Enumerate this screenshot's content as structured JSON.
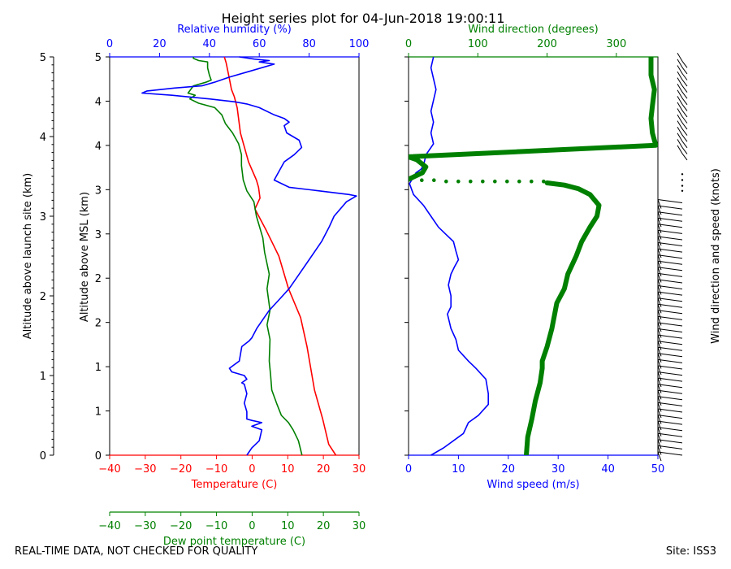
{
  "title": "Height series plot for 04-Jun-2018 19:00:11",
  "footer_left": "REAL-TIME DATA, NOT CHECKED FOR QUALITY",
  "footer_right": "Site: ISS3",
  "colors": {
    "temperature": "#ff0000",
    "dewpoint": "#008000",
    "rh": "#0000ff",
    "wind_speed": "#0000ff",
    "wind_dir": "#008000",
    "axis": "#000000"
  },
  "chart_data": [
    {
      "type": "line",
      "name": "thermo-panel",
      "ylabel_outer": "Altitude above launch site (km)",
      "ylabel_inner": "Altitude above MSL (km)",
      "outer_y_ticks": [
        "0",
        "1",
        "2",
        "3",
        "4",
        "5"
      ],
      "inner_y_ticks": [
        "0",
        "1",
        "1",
        "2",
        "2",
        "3",
        "3",
        "4",
        "4",
        "5"
      ],
      "ylim_agl": [
        0,
        5
      ],
      "temperature_axis": {
        "label": "Temperature (C)",
        "ticks": [
          "−40",
          "−30",
          "−20",
          "−10",
          "0",
          "10",
          "20",
          "30"
        ],
        "xlim": [
          -40,
          30
        ]
      },
      "dewpoint_axis": {
        "label": "Dew point temperature (C)",
        "ticks": [
          "−40",
          "−30",
          "−20",
          "−10",
          "0",
          "10",
          "20",
          "30"
        ],
        "xlim": [
          -40,
          30
        ]
      },
      "rh_axis": {
        "label": "Relative humidity (%)",
        "ticks": [
          "0",
          "20",
          "40",
          "60",
          "80",
          "100"
        ],
        "xlim": [
          0,
          100
        ]
      },
      "series": [
        {
          "name": "Temperature",
          "axis": "temperature",
          "values": [
            [
              23.5,
              0.0
            ],
            [
              21.5,
              0.15
            ],
            [
              19.8,
              0.5
            ],
            [
              17.5,
              0.9
            ],
            [
              15.4,
              1.5
            ],
            [
              13.6,
              1.9
            ],
            [
              10.2,
              2.3
            ],
            [
              7.5,
              2.75
            ],
            [
              4.0,
              3.1
            ],
            [
              0.8,
              3.4
            ],
            [
              2.2,
              3.55
            ],
            [
              1.8,
              3.7
            ],
            [
              1.2,
              3.8
            ],
            [
              -1.0,
              4.05
            ],
            [
              -3.3,
              4.45
            ],
            [
              -4.2,
              4.8
            ],
            [
              -5.0,
              4.95
            ],
            [
              -5.8,
              5.05
            ],
            [
              -6.6,
              5.25
            ],
            [
              -7.3,
              5.42
            ],
            [
              -7.8,
              5.5
            ]
          ]
        },
        {
          "name": "Dew point",
          "axis": "dewpoint",
          "values": [
            [
              14.0,
              0.0
            ],
            [
              13.0,
              0.2
            ],
            [
              11.5,
              0.35
            ],
            [
              10.2,
              0.45
            ],
            [
              8.2,
              0.55
            ],
            [
              7.0,
              0.7
            ],
            [
              5.5,
              0.9
            ],
            [
              5.2,
              1.1
            ],
            [
              4.8,
              1.3
            ],
            [
              5.0,
              1.6
            ],
            [
              4.2,
              1.8
            ],
            [
              5.0,
              2.0
            ],
            [
              4.2,
              2.3
            ],
            [
              4.8,
              2.5
            ],
            [
              3.5,
              2.8
            ],
            [
              3.0,
              3.0
            ],
            [
              1.2,
              3.3
            ],
            [
              0.5,
              3.5
            ],
            [
              -1.5,
              3.65
            ],
            [
              -2.5,
              3.8
            ],
            [
              -3.0,
              4.0
            ],
            [
              -3.0,
              4.15
            ],
            [
              -3.8,
              4.3
            ],
            [
              -5.5,
              4.45
            ],
            [
              -7.5,
              4.58
            ],
            [
              -8.5,
              4.7
            ],
            [
              -10.5,
              4.8
            ],
            [
              -15.0,
              4.86
            ],
            [
              -17.5,
              4.92
            ],
            [
              -16.0,
              4.97
            ],
            [
              -18.0,
              5.0
            ],
            [
              -16.5,
              5.1
            ],
            [
              -13.0,
              5.15
            ],
            [
              -11.5,
              5.18
            ],
            [
              -12.0,
              5.25
            ],
            [
              -12.5,
              5.35
            ],
            [
              -12.5,
              5.43
            ],
            [
              -15.0,
              5.45
            ],
            [
              -16.5,
              5.48
            ],
            [
              -16.5,
              5.5
            ]
          ]
        },
        {
          "name": "Relative humidity",
          "axis": "rh",
          "values": [
            [
              55,
              0.0
            ],
            [
              57,
              0.1
            ],
            [
              60,
              0.2
            ],
            [
              61,
              0.35
            ],
            [
              57,
              0.4
            ],
            [
              61,
              0.45
            ],
            [
              57,
              0.48
            ],
            [
              55,
              0.5
            ],
            [
              55,
              0.6
            ],
            [
              54,
              0.72
            ],
            [
              55,
              0.85
            ],
            [
              54,
              0.98
            ],
            [
              53,
              1.0
            ],
            [
              55,
              1.05
            ],
            [
              54,
              1.1
            ],
            [
              49,
              1.15
            ],
            [
              48,
              1.2
            ],
            [
              50,
              1.25
            ],
            [
              52,
              1.3
            ],
            [
              53,
              1.5
            ],
            [
              56,
              1.58
            ],
            [
              57,
              1.62
            ],
            [
              59,
              1.75
            ],
            [
              62,
              1.9
            ],
            [
              64,
              2.0
            ],
            [
              68,
              2.15
            ],
            [
              72,
              2.3
            ],
            [
              75,
              2.45
            ],
            [
              80,
              2.7
            ],
            [
              85,
              2.95
            ],
            [
              88,
              3.15
            ],
            [
              90,
              3.3
            ],
            [
              95,
              3.5
            ],
            [
              99,
              3.58
            ],
            [
              96,
              3.6
            ],
            [
              84,
              3.65
            ],
            [
              72,
              3.7
            ],
            [
              66,
              3.8
            ],
            [
              70,
              4.05
            ],
            [
              74,
              4.15
            ],
            [
              77,
              4.25
            ],
            [
              76,
              4.35
            ],
            [
              71,
              4.45
            ],
            [
              70,
              4.55
            ],
            [
              72,
              4.6
            ],
            [
              70,
              4.65
            ],
            [
              66,
              4.7
            ],
            [
              60,
              4.8
            ],
            [
              55,
              4.85
            ],
            [
              50,
              4.88
            ],
            [
              40,
              4.92
            ],
            [
              25,
              4.97
            ],
            [
              13,
              5.0
            ],
            [
              15,
              5.03
            ],
            [
              26,
              5.07
            ],
            [
              37,
              5.1
            ],
            [
              42,
              5.15
            ],
            [
              48,
              5.22
            ],
            [
              56,
              5.3
            ],
            [
              66,
              5.4
            ],
            [
              60,
              5.43
            ],
            [
              64,
              5.45
            ],
            [
              58,
              5.47
            ],
            [
              52,
              5.5
            ]
          ]
        }
      ]
    },
    {
      "type": "line",
      "name": "wind-panel",
      "ylabel_right": "Wind direction and speed (knots)",
      "ylim_agl": [
        0,
        5
      ],
      "speed_axis": {
        "label": "Wind speed (m/s)",
        "ticks": [
          "0",
          "10",
          "20",
          "30",
          "40",
          "50"
        ],
        "xlim": [
          0,
          50
        ]
      },
      "direction_axis": {
        "label": "Wind direction (degrees)",
        "ticks": [
          "0",
          "100",
          "200",
          "300"
        ],
        "xlim": [
          0,
          360
        ]
      },
      "series": [
        {
          "name": "Wind speed",
          "axis": "speed",
          "values": [
            [
              4.5,
              0.0
            ],
            [
              7,
              0.1
            ],
            [
              11,
              0.3
            ],
            [
              12,
              0.45
            ],
            [
              14,
              0.55
            ],
            [
              16,
              0.7
            ],
            [
              16,
              0.85
            ],
            [
              15.5,
              1.05
            ],
            [
              13.5,
              1.2
            ],
            [
              12,
              1.3
            ],
            [
              10,
              1.45
            ],
            [
              9.5,
              1.6
            ],
            [
              8.5,
              1.75
            ],
            [
              7.8,
              1.95
            ],
            [
              8.5,
              2.05
            ],
            [
              8.5,
              2.2
            ],
            [
              8.0,
              2.35
            ],
            [
              8.5,
              2.5
            ],
            [
              9.2,
              2.6
            ],
            [
              10,
              2.7
            ],
            [
              9.5,
              2.82
            ],
            [
              9.0,
              2.95
            ],
            [
              7.5,
              3.05
            ],
            [
              6.0,
              3.15
            ],
            [
              4.5,
              3.3
            ],
            [
              3.0,
              3.45
            ],
            [
              1.0,
              3.6
            ],
            [
              0.2,
              3.75
            ],
            [
              1.5,
              3.9
            ],
            [
              2.5,
              3.95
            ],
            [
              3.0,
              4.0
            ],
            [
              3.5,
              4.15
            ],
            [
              5.0,
              4.3
            ],
            [
              4.5,
              4.45
            ],
            [
              5.0,
              4.6
            ],
            [
              4.5,
              4.75
            ],
            [
              5.0,
              4.9
            ],
            [
              5.5,
              5.05
            ],
            [
              5.0,
              5.2
            ],
            [
              4.5,
              5.35
            ],
            [
              5.0,
              5.5
            ]
          ]
        },
        {
          "name": "Wind direction",
          "axis": "direction",
          "values": [
            [
              170,
              0.0
            ],
            [
              172,
              0.25
            ],
            [
              178,
              0.5
            ],
            [
              183,
              0.75
            ],
            [
              190,
              1.0
            ],
            [
              193,
              1.2
            ],
            [
              193,
              1.3
            ],
            [
              200,
              1.5
            ],
            [
              207,
              1.75
            ],
            [
              212,
              2.0
            ],
            [
              214,
              2.1
            ],
            [
              225,
              2.3
            ],
            [
              230,
              2.5
            ],
            [
              242,
              2.75
            ],
            [
              250,
              2.95
            ],
            [
              262,
              3.15
            ],
            [
              272,
              3.3
            ],
            [
              275,
              3.45
            ],
            [
              262,
              3.6
            ],
            [
              245,
              3.68
            ],
            [
              225,
              3.73
            ],
            [
              200,
              3.76
            ],
            [
              160,
              3.78
            ],
            [
              100,
              3.79
            ],
            [
              40,
              3.8
            ],
            [
              0,
              3.81
            ],
            [
              20,
              3.9
            ],
            [
              25,
              3.98
            ],
            [
              12,
              4.08
            ],
            [
              0,
              4.12
            ],
            [
              357,
              4.28
            ],
            [
              352,
              4.45
            ],
            [
              350,
              4.65
            ],
            [
              352,
              4.82
            ],
            [
              355,
              5.05
            ],
            [
              350,
              5.25
            ],
            [
              350,
              5.45
            ],
            [
              350,
              5.5
            ]
          ]
        }
      ]
    }
  ]
}
